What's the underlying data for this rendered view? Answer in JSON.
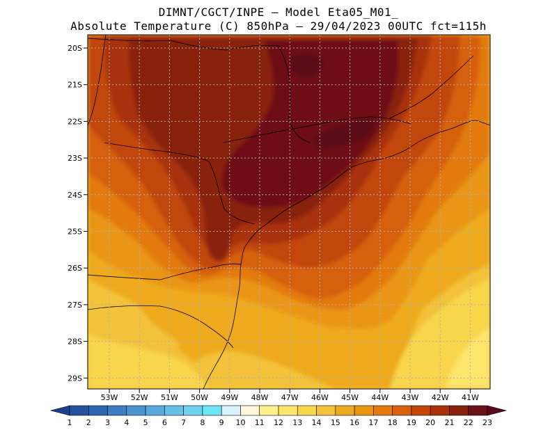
{
  "header": {
    "line1": "DIMNT/CGCT/INPE –  Model Eta05_M01_",
    "line2": "Absolute Temperature (C) 850hPa –  29/04/2023 00UTC fct=115h"
  },
  "map": {
    "lat_labels": [
      "20S",
      "21S",
      "22S",
      "23S",
      "24S",
      "25S",
      "26S",
      "27S",
      "28S",
      "29S"
    ],
    "lon_labels": [
      "53W",
      "52W",
      "51W",
      "50W",
      "49W",
      "48W",
      "47W",
      "46W",
      "45W",
      "44W",
      "43W",
      "42W",
      "41W"
    ],
    "grid": "dotted"
  },
  "colorbar": {
    "labels": [
      "1",
      "2",
      "3",
      "4",
      "5",
      "6",
      "7",
      "8",
      "9",
      "10",
      "11",
      "12",
      "13",
      "14",
      "15",
      "16",
      "17",
      "18",
      "19",
      "20",
      "21",
      "22",
      "23"
    ],
    "colors": [
      "#1f3f8f",
      "#2653a0",
      "#2e68b3",
      "#3b7fc2",
      "#4a95cd",
      "#58aadb",
      "#66bfe6",
      "#6fd2ef",
      "#6ee6f5",
      "#d7f3fb",
      "#fff6dc",
      "#fff08e",
      "#fde46a",
      "#f8d54b",
      "#f3c23a",
      "#eeaa1e",
      "#e99512",
      "#e27a0d",
      "#d6600c",
      "#c24609",
      "#a8330a",
      "#88210f",
      "#6e1018",
      "#5a0a18"
    ]
  }
}
